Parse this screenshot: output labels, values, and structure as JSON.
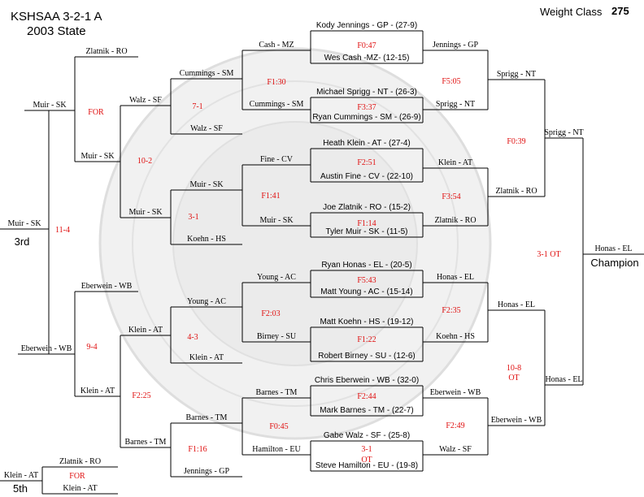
{
  "header": {
    "title_line1": "KSHSAA 3-2-1 A",
    "title_line2": "2003 State",
    "weight_label": "Weight Class",
    "weight_value": "275"
  },
  "colors": {
    "line": "#000000",
    "result": "#e01010",
    "seal": "#d9d9d9"
  },
  "first_round": [
    "Kody Jennings - GP - (27-9)",
    "Wes Cash -MZ- (12-15)",
    "Michael Sprigg - NT - (26-3)",
    "Ryan Cummings - SM - (26-9)",
    "Heath Klein - AT - (27-4)",
    "Austin Fine - CV - (22-10)",
    "Joe Zlatnik - RO - (15-2)",
    "Tyler Muir - SK - (11-5)",
    "Ryan Honas - EL - (20-5)",
    "Matt Young - AC - (15-14)",
    "Matt Koehn - HS - (19-12)",
    "Robert Birney - SU - (12-6)",
    "Chris Eberwein - WB - (32-0)",
    "Mark Barnes - TM - (22-7)",
    "Gabe Walz - SF - (25-8)",
    "Steve Hamilton - EU - (19-8)"
  ],
  "first_round_results": [
    "F0:47",
    "F3:37",
    "F2:51",
    "F1:14",
    "F5:43",
    "F1:22",
    "F2:44",
    "3-1",
    "OT"
  ],
  "quarterfinals": [
    "Jennings - GP",
    "Sprigg - NT",
    "Klein - AT",
    "Zlatnik - RO",
    "Honas - EL",
    "Koehn - HS",
    "Eberwein - WB",
    "Walz - SF"
  ],
  "quarterfinal_results": [
    "F5:05",
    "F3:54",
    "F2:35",
    "F2:49"
  ],
  "semifinals": [
    "Sprigg - NT",
    "Zlatnik - RO",
    "Honas - EL",
    "Eberwein - WB"
  ],
  "semifinal_results": [
    "F0:39",
    "10-8",
    "OT"
  ],
  "finals": [
    "Sprigg - NT",
    "Honas - EL"
  ],
  "final_result": "3-1 OT",
  "champion": {
    "name": "Honas - EL",
    "label": "Champion"
  },
  "consolation_r1": [
    "Cash - MZ",
    "Cummings - SM",
    "Fine - CV",
    "Muir - SK",
    "Young - AC",
    "Birney - SU",
    "Barnes - TM",
    "Hamilton - EU"
  ],
  "consolation_r1_results": [
    "F1:30",
    "F1:41",
    "F2:03",
    "F0:45"
  ],
  "consolation_r2": [
    "Cummings - SM",
    "Walz - SF",
    "Muir - SK",
    "Koehn - HS",
    "Young - AC",
    "Klein - AT",
    "Barnes - TM",
    "Jennings - GP"
  ],
  "consolation_r2_results": [
    "7-1",
    "3-1",
    "4-3",
    "F1:16"
  ],
  "consolation_r3": [
    "Walz - SF",
    "Muir - SK",
    "Klein - AT",
    "Barnes - TM"
  ],
  "consolation_r3_results": [
    "10-2",
    "F2:25"
  ],
  "consolation_semis": [
    "Zlatnik - RO",
    "Muir - SK",
    "Eberwein - WB",
    "Klein - AT"
  ],
  "consolation_semi_results": [
    "FOR",
    "9-4"
  ],
  "third_place": {
    "finalists": [
      "Muir - SK",
      "Eberwein - WB"
    ],
    "result": "11-4",
    "winner": "Muir - SK",
    "label": "3rd"
  },
  "fifth_place": {
    "finalists": [
      "Zlatnik - RO",
      "Klein - AT"
    ],
    "result": "FOR",
    "winner": "Klein - AT",
    "label": "5th"
  }
}
